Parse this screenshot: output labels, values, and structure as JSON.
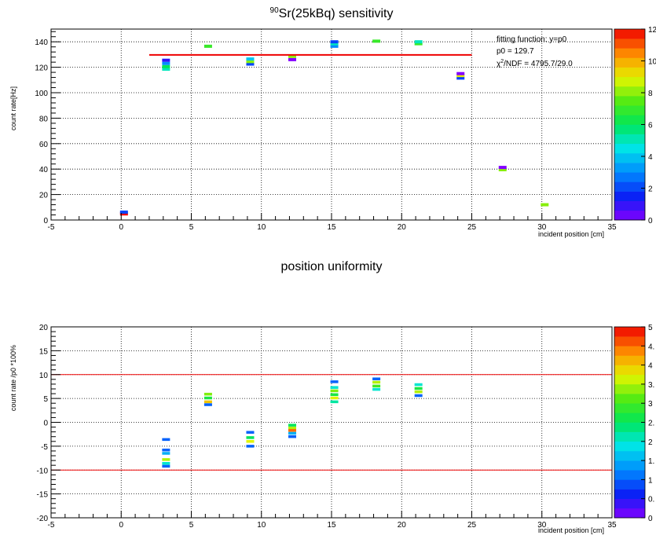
{
  "chart_data": [
    {
      "type": "heatmap",
      "title_sup": "90",
      "title": "Sr(25kBq) sensitivity",
      "xlabel": "incident position [cm]",
      "ylabel": "count rate[Hz]",
      "xlim": [
        -5,
        35
      ],
      "ylim": [
        0,
        150
      ],
      "xticks": [
        -5,
        0,
        5,
        10,
        15,
        20,
        25,
        30,
        35
      ],
      "yticks": [
        0,
        20,
        40,
        60,
        80,
        100,
        120,
        140
      ],
      "grid": true,
      "fit": {
        "x": [
          2,
          25
        ],
        "y": 129.7,
        "color": "#ee0000"
      },
      "stats": {
        "line1": "fitting function: y=p0",
        "line2": "p0 = 129.7",
        "chi_symbol": "χ",
        "chi_sup": "2",
        "chi_rest": "/NDF = 4795.7/29.0"
      },
      "colorbar": {
        "min": 0,
        "max": 12,
        "labels": [
          "0",
          "2",
          "4",
          "6",
          "8",
          "10",
          "12"
        ]
      },
      "cells": [
        {
          "x": 0.2,
          "y": 4.8,
          "z": 12
        },
        {
          "x": 0.2,
          "y": 6.2,
          "z": 2
        },
        {
          "x": 3.2,
          "y": 118.5,
          "z": 5
        },
        {
          "x": 3.2,
          "y": 120.5,
          "z": 6
        },
        {
          "x": 3.2,
          "y": 123,
          "z": 3
        },
        {
          "x": 3.2,
          "y": 125.5,
          "z": 1
        },
        {
          "x": 6.2,
          "y": 136.5,
          "z": 7
        },
        {
          "x": 9.2,
          "y": 122.5,
          "z": 2
        },
        {
          "x": 9.2,
          "y": 124.5,
          "z": 8
        },
        {
          "x": 9.2,
          "y": 126.5,
          "z": 4
        },
        {
          "x": 12.2,
          "y": 126,
          "z": 0
        },
        {
          "x": 12.2,
          "y": 128.5,
          "z": 8
        },
        {
          "x": 15.2,
          "y": 136.5,
          "z": 3
        },
        {
          "x": 15.2,
          "y": 138.5,
          "z": 5
        },
        {
          "x": 15.2,
          "y": 140,
          "z": 2
        },
        {
          "x": 18.2,
          "y": 140.5,
          "z": 7
        },
        {
          "x": 21.2,
          "y": 138.5,
          "z": 7
        },
        {
          "x": 21.2,
          "y": 140,
          "z": 5
        },
        {
          "x": 24.2,
          "y": 111.5,
          "z": 2
        },
        {
          "x": 24.2,
          "y": 113.5,
          "z": 9
        },
        {
          "x": 24.2,
          "y": 115,
          "z": 0
        },
        {
          "x": 27.2,
          "y": 39.5,
          "z": 8
        },
        {
          "x": 27.2,
          "y": 41.3,
          "z": 0
        },
        {
          "x": 30.2,
          "y": 12,
          "z": 8
        }
      ]
    },
    {
      "type": "heatmap",
      "title": "position uniformity",
      "xlabel": "incident position [cm]",
      "ylabel": "count rate /p0 *100%",
      "xlim": [
        -5,
        35
      ],
      "ylim": [
        -20,
        20
      ],
      "xticks": [
        -5,
        0,
        5,
        10,
        15,
        20,
        25,
        30,
        35
      ],
      "yticks": [
        -20,
        -15,
        -10,
        -5,
        0,
        5,
        10,
        15,
        20
      ],
      "grid": true,
      "hlines": [
        {
          "y": 10,
          "color": "#ee0000"
        },
        {
          "y": -10,
          "color": "#ee0000"
        }
      ],
      "colorbar": {
        "min": 0,
        "max": 5,
        "labels": [
          "0",
          "0.",
          "1",
          "1.",
          "2",
          "2.",
          "3",
          "3.",
          "4",
          "4.",
          "5"
        ]
      },
      "cells": [
        {
          "x": 3.2,
          "y": -3.6,
          "z": 1
        },
        {
          "x": 3.2,
          "y": -5.8,
          "z": 1
        },
        {
          "x": 3.2,
          "y": -6.5,
          "z": 1.5
        },
        {
          "x": 3.2,
          "y": -7.8,
          "z": 3.5
        },
        {
          "x": 3.2,
          "y": -8.6,
          "z": 2
        },
        {
          "x": 3.2,
          "y": -9.2,
          "z": 1
        },
        {
          "x": 6.2,
          "y": 5.9,
          "z": 3.3
        },
        {
          "x": 6.2,
          "y": 5.1,
          "z": 2.7
        },
        {
          "x": 6.2,
          "y": 4.3,
          "z": 4
        },
        {
          "x": 6.2,
          "y": 3.7,
          "z": 1
        },
        {
          "x": 9.2,
          "y": -2.1,
          "z": 1
        },
        {
          "x": 9.2,
          "y": -3.2,
          "z": 2.5
        },
        {
          "x": 9.2,
          "y": -4.0,
          "z": 3.7
        },
        {
          "x": 9.2,
          "y": -5.0,
          "z": 1
        },
        {
          "x": 12.2,
          "y": -0.6,
          "z": 2.5
        },
        {
          "x": 12.2,
          "y": -1.2,
          "z": 3.5
        },
        {
          "x": 12.2,
          "y": -1.7,
          "z": 4.5
        },
        {
          "x": 12.2,
          "y": -2.3,
          "z": 1.5
        },
        {
          "x": 12.2,
          "y": -3.0,
          "z": 1
        },
        {
          "x": 15.2,
          "y": 8.5,
          "z": 1
        },
        {
          "x": 15.2,
          "y": 7.3,
          "z": 2
        },
        {
          "x": 15.2,
          "y": 6.6,
          "z": 3.3
        },
        {
          "x": 15.2,
          "y": 5.8,
          "z": 2.7
        },
        {
          "x": 15.2,
          "y": 5.1,
          "z": 3.7
        },
        {
          "x": 15.2,
          "y": 4.3,
          "z": 2.2
        },
        {
          "x": 18.2,
          "y": 9.1,
          "z": 1
        },
        {
          "x": 18.2,
          "y": 8.4,
          "z": 3.5
        },
        {
          "x": 18.2,
          "y": 7.6,
          "z": 3
        },
        {
          "x": 18.2,
          "y": 6.9,
          "z": 2
        },
        {
          "x": 21.2,
          "y": 7.9,
          "z": 2
        },
        {
          "x": 21.2,
          "y": 7.1,
          "z": 2.7
        },
        {
          "x": 21.2,
          "y": 6.4,
          "z": 3.5
        },
        {
          "x": 21.2,
          "y": 5.6,
          "z": 1
        }
      ]
    }
  ]
}
